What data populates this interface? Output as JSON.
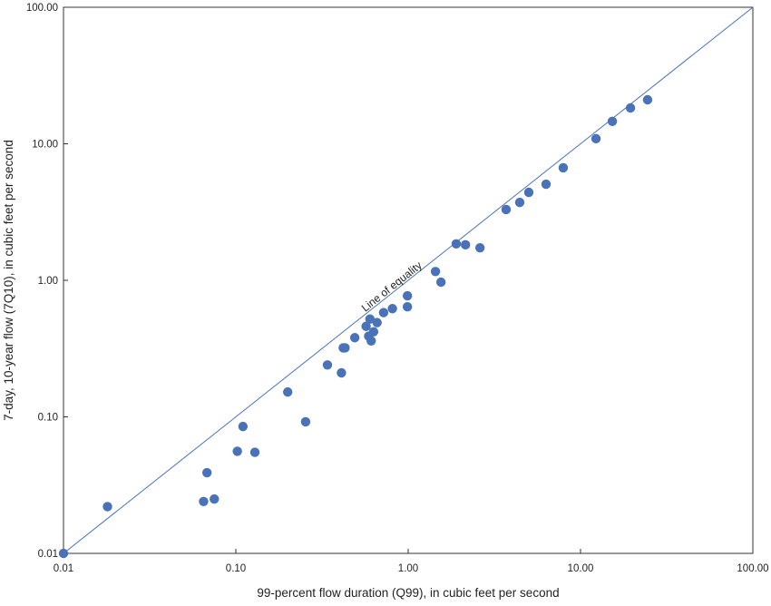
{
  "chart_data": {
    "type": "scatter",
    "xscale": "log",
    "yscale": "log",
    "xlim": [
      0.01,
      100
    ],
    "ylim": [
      0.01,
      100
    ],
    "xlabel": "99-percent flow duration (Q99), in cubic feet per second",
    "ylabel": "7-day, 10-year flow (7Q10), in cubic feet per second",
    "xticks": [
      "0.01",
      "0.10",
      "1.00",
      "10.00",
      "100.00"
    ],
    "yticks": [
      "0.01",
      "0.10",
      "1.00",
      "10.00",
      "100.00"
    ],
    "grid": false,
    "point_color": "#4a72b8",
    "line_color": "#4a72b8",
    "reference_line": {
      "label": "Line of equality",
      "slope": 1
    },
    "points": [
      [
        0.01,
        0.01
      ],
      [
        0.018,
        0.022
      ],
      [
        0.065,
        0.024
      ],
      [
        0.075,
        0.025
      ],
      [
        0.068,
        0.039
      ],
      [
        0.102,
        0.056
      ],
      [
        0.11,
        0.085
      ],
      [
        0.129,
        0.055
      ],
      [
        0.2,
        0.152
      ],
      [
        0.254,
        0.092
      ],
      [
        0.34,
        0.24
      ],
      [
        0.41,
        0.21
      ],
      [
        0.42,
        0.32
      ],
      [
        0.43,
        0.32
      ],
      [
        0.49,
        0.38
      ],
      [
        0.57,
        0.46
      ],
      [
        0.6,
        0.52
      ],
      [
        0.59,
        0.39
      ],
      [
        0.61,
        0.36
      ],
      [
        0.63,
        0.42
      ],
      [
        0.66,
        0.49
      ],
      [
        0.72,
        0.58
      ],
      [
        0.81,
        0.62
      ],
      [
        0.99,
        0.77
      ],
      [
        0.99,
        0.64
      ],
      [
        1.44,
        1.16
      ],
      [
        1.55,
        0.97
      ],
      [
        1.9,
        1.85
      ],
      [
        2.15,
        1.82
      ],
      [
        2.61,
        1.73
      ],
      [
        3.7,
        3.3
      ],
      [
        4.44,
        3.72
      ],
      [
        5.01,
        4.41
      ],
      [
        6.31,
        5.06
      ],
      [
        7.94,
        6.67
      ],
      [
        12.3,
        10.9
      ],
      [
        15.3,
        14.6
      ],
      [
        19.5,
        18.3
      ],
      [
        24.5,
        21.0
      ]
    ]
  }
}
